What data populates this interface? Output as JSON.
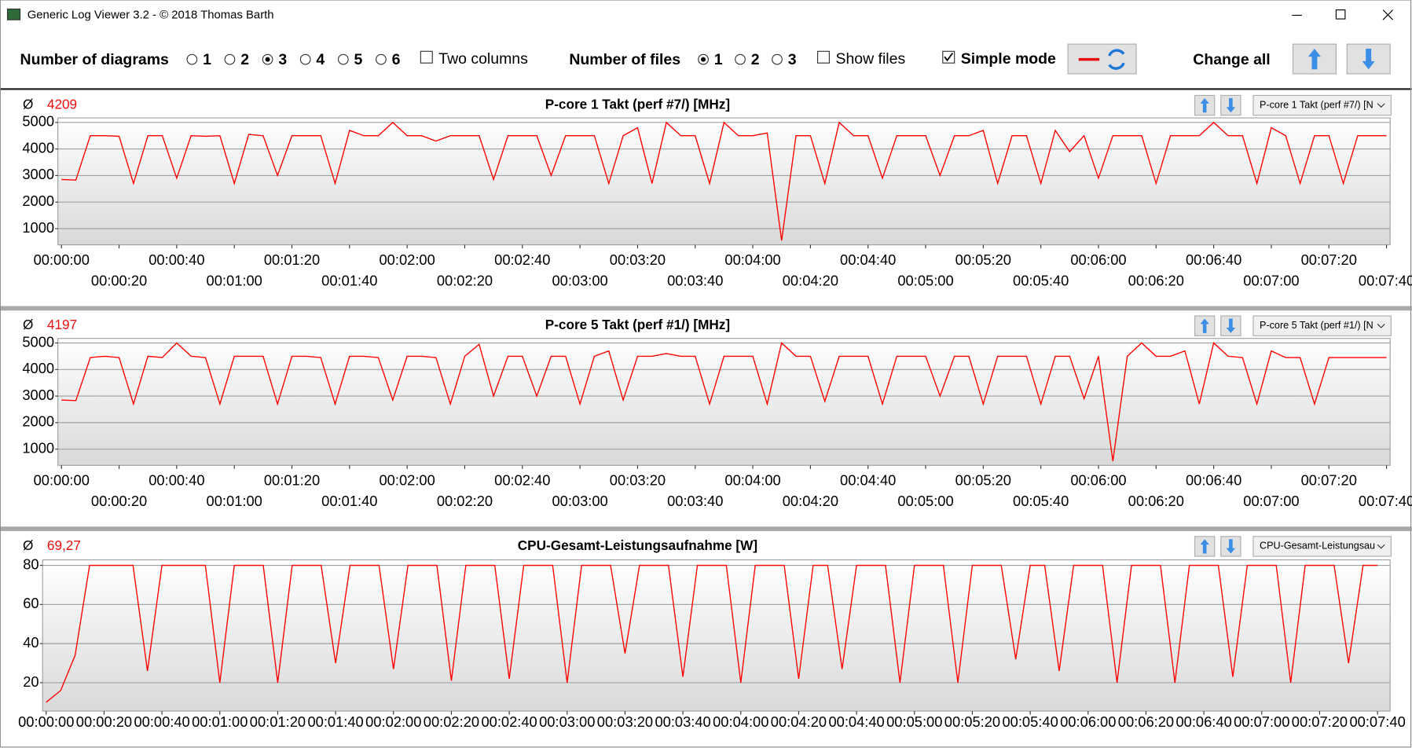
{
  "window": {
    "title": "Generic Log Viewer 3.2 - © 2018 Thomas Barth"
  },
  "toolbar": {
    "diagrams_label": "Number of diagrams",
    "diagram_options": [
      "1",
      "2",
      "3",
      "4",
      "5",
      "6"
    ],
    "diagrams_selected": "3",
    "two_columns": "Two columns",
    "two_columns_checked": false,
    "files_label": "Number of files",
    "file_options": [
      "1",
      "2",
      "3"
    ],
    "files_selected": "1",
    "show_files": "Show files",
    "show_files_checked": false,
    "simple_mode": "Simple mode",
    "simple_mode_checked": true,
    "change_all": "Change all"
  },
  "chart_data": [
    {
      "type": "line",
      "title": "P-core 1 Takt (perf #7/) [MHz]",
      "average_symbol": "Ø",
      "average": "4209",
      "selector": "P-core 1 Takt (perf #7/) [N",
      "color": "#ff0000",
      "grid": true,
      "x": [
        0,
        5,
        10,
        15,
        20,
        25,
        30,
        35,
        40,
        45,
        50,
        55,
        60,
        65,
        70,
        75,
        80,
        85,
        90,
        95,
        100,
        105,
        110,
        115,
        120,
        125,
        130,
        135,
        140,
        145,
        150,
        155,
        160,
        165,
        170,
        175,
        180,
        185,
        190,
        195,
        200,
        205,
        210,
        215,
        220,
        225,
        230,
        235,
        240,
        245,
        250,
        255,
        260,
        265,
        270,
        275,
        280,
        285,
        290,
        295,
        300,
        305,
        310,
        315,
        320,
        325,
        330,
        335,
        340,
        345,
        350,
        355,
        360,
        365,
        370,
        375,
        380,
        385,
        390,
        395,
        400,
        405,
        410,
        415,
        420,
        425,
        430,
        435,
        440,
        445,
        450,
        455,
        460
      ],
      "values": [
        2850,
        2830,
        4500,
        4500,
        4480,
        2700,
        4500,
        4500,
        2900,
        4500,
        4480,
        4500,
        2700,
        4550,
        4500,
        3000,
        4500,
        4500,
        4500,
        2700,
        4700,
        4500,
        4500,
        5000,
        4500,
        4500,
        4300,
        4500,
        4500,
        4500,
        2850,
        4500,
        4500,
        4500,
        3000,
        4500,
        4500,
        4500,
        2700,
        4500,
        4800,
        2700,
        5000,
        4500,
        4500,
        2700,
        5000,
        4500,
        4500,
        4600,
        550,
        4500,
        4500,
        2700,
        5000,
        4500,
        4500,
        2900,
        4500,
        4500,
        4500,
        3000,
        4500,
        4500,
        4700,
        2700,
        4500,
        4500,
        2700,
        4700,
        3900,
        4500,
        2900,
        4500,
        4500,
        4500,
        2700,
        4500,
        4500,
        4500,
        5000,
        4500,
        4500,
        2700,
        4800,
        4500,
        2700,
        4500,
        4500,
        2700,
        4500,
        4500,
        4500
      ],
      "xlim": [
        0,
        460
      ],
      "xticks": [
        {
          "value": 0,
          "label": "00:00:00"
        },
        {
          "value": 20,
          "label": "00:00:20"
        },
        {
          "value": 40,
          "label": "00:00:40"
        },
        {
          "value": 60,
          "label": "00:01:00"
        },
        {
          "value": 80,
          "label": "00:01:20"
        },
        {
          "value": 100,
          "label": "00:01:40"
        },
        {
          "value": 120,
          "label": "00:02:00"
        },
        {
          "value": 140,
          "label": "00:02:20"
        },
        {
          "value": 160,
          "label": "00:02:40"
        },
        {
          "value": 180,
          "label": "00:03:00"
        },
        {
          "value": 200,
          "label": "00:03:20"
        },
        {
          "value": 220,
          "label": "00:03:40"
        },
        {
          "value": 240,
          "label": "00:04:00"
        },
        {
          "value": 260,
          "label": "00:04:20"
        },
        {
          "value": 280,
          "label": "00:04:40"
        },
        {
          "value": 300,
          "label": "00:05:00"
        },
        {
          "value": 320,
          "label": "00:05:20"
        },
        {
          "value": 340,
          "label": "00:05:40"
        },
        {
          "value": 360,
          "label": "00:06:00"
        },
        {
          "value": 380,
          "label": "00:06:20"
        },
        {
          "value": 400,
          "label": "00:06:40"
        },
        {
          "value": 420,
          "label": "00:07:00"
        },
        {
          "value": 440,
          "label": "00:07:20"
        },
        {
          "value": 460,
          "label": "00:07:40"
        }
      ],
      "ylim": [
        390,
        5170
      ],
      "yticks": [
        1000,
        2000,
        3000,
        4000,
        5000
      ]
    },
    {
      "type": "line",
      "title": "P-core 5 Takt (perf #1/) [MHz]",
      "average_symbol": "Ø",
      "average": "4197",
      "selector": "P-core 5 Takt (perf #1/) [N",
      "color": "#ff0000",
      "grid": true,
      "x": [
        0,
        5,
        10,
        15,
        20,
        25,
        30,
        35,
        40,
        45,
        50,
        55,
        60,
        65,
        70,
        75,
        80,
        85,
        90,
        95,
        100,
        105,
        110,
        115,
        120,
        125,
        130,
        135,
        140,
        145,
        150,
        155,
        160,
        165,
        170,
        175,
        180,
        185,
        190,
        195,
        200,
        205,
        210,
        215,
        220,
        225,
        230,
        235,
        240,
        245,
        250,
        255,
        260,
        265,
        270,
        275,
        280,
        285,
        290,
        295,
        300,
        305,
        310,
        315,
        320,
        325,
        330,
        335,
        340,
        345,
        350,
        355,
        360,
        365,
        370,
        375,
        380,
        385,
        390,
        395,
        400,
        405,
        410,
        415,
        420,
        425,
        430,
        435,
        440,
        445,
        450,
        455,
        460
      ],
      "values": [
        2850,
        2830,
        4450,
        4500,
        4450,
        2700,
        4500,
        4450,
        5000,
        4500,
        4450,
        2700,
        4500,
        4500,
        4500,
        2700,
        4500,
        4500,
        4450,
        2700,
        4500,
        4500,
        4450,
        2850,
        4500,
        4500,
        4450,
        2700,
        4500,
        4950,
        3000,
        4500,
        4500,
        3000,
        4500,
        4500,
        2700,
        4500,
        4700,
        2850,
        4500,
        4500,
        4600,
        4500,
        4500,
        2700,
        4500,
        4500,
        4500,
        2700,
        5000,
        4500,
        4500,
        2800,
        4500,
        4500,
        4500,
        2700,
        4500,
        4500,
        4500,
        3000,
        4500,
        4500,
        2700,
        4500,
        4500,
        4500,
        2700,
        4500,
        4500,
        2900,
        4500,
        550,
        4500,
        5000,
        4500,
        4500,
        4700,
        2700,
        5000,
        4500,
        4450,
        2700,
        4700,
        4450,
        4450,
        2700,
        4450,
        4450,
        4450,
        4450,
        4450
      ],
      "xlim": [
        0,
        460
      ],
      "xticks": [
        {
          "value": 0,
          "label": "00:00:00"
        },
        {
          "value": 20,
          "label": "00:00:20"
        },
        {
          "value": 40,
          "label": "00:00:40"
        },
        {
          "value": 60,
          "label": "00:01:00"
        },
        {
          "value": 80,
          "label": "00:01:20"
        },
        {
          "value": 100,
          "label": "00:01:40"
        },
        {
          "value": 120,
          "label": "00:02:00"
        },
        {
          "value": 140,
          "label": "00:02:20"
        },
        {
          "value": 160,
          "label": "00:02:40"
        },
        {
          "value": 180,
          "label": "00:03:00"
        },
        {
          "value": 200,
          "label": "00:03:20"
        },
        {
          "value": 220,
          "label": "00:03:40"
        },
        {
          "value": 240,
          "label": "00:04:00"
        },
        {
          "value": 260,
          "label": "00:04:20"
        },
        {
          "value": 280,
          "label": "00:04:40"
        },
        {
          "value": 300,
          "label": "00:05:00"
        },
        {
          "value": 320,
          "label": "00:05:20"
        },
        {
          "value": 340,
          "label": "00:05:40"
        },
        {
          "value": 360,
          "label": "00:06:00"
        },
        {
          "value": 380,
          "label": "00:06:20"
        },
        {
          "value": 400,
          "label": "00:06:40"
        },
        {
          "value": 420,
          "label": "00:07:00"
        },
        {
          "value": 440,
          "label": "00:07:20"
        },
        {
          "value": 460,
          "label": "00:07:40"
        }
      ],
      "ylim": [
        390,
        5170
      ],
      "yticks": [
        1000,
        2000,
        3000,
        4000,
        5000
      ]
    },
    {
      "type": "line",
      "title": "CPU-Gesamt-Leistungsaufnahme [W]",
      "average_symbol": "Ø",
      "average": "69,27",
      "selector": "CPU-Gesamt-Leistungsau",
      "color": "#ff0000",
      "grid": true,
      "x": [
        0,
        5,
        10,
        15,
        20,
        25,
        30,
        35,
        40,
        45,
        50,
        55,
        60,
        65,
        70,
        75,
        80,
        85,
        90,
        95,
        100,
        105,
        110,
        115,
        120,
        125,
        130,
        135,
        140,
        145,
        150,
        155,
        160,
        165,
        170,
        175,
        180,
        185,
        190,
        195,
        200,
        205,
        210,
        215,
        220,
        225,
        230,
        235,
        240,
        245,
        250,
        255,
        260,
        265,
        270,
        275,
        280,
        285,
        290,
        295,
        300,
        305,
        310,
        315,
        320,
        325,
        330,
        335,
        340,
        345,
        350,
        355,
        360,
        365,
        370,
        375,
        380,
        385,
        390,
        395,
        400,
        405,
        410,
        415,
        420,
        425,
        430,
        435,
        440,
        445,
        450,
        455,
        460
      ],
      "values": [
        10,
        16,
        34,
        80,
        80,
        80,
        80,
        26,
        80,
        80,
        80,
        80,
        20,
        80,
        80,
        80,
        20,
        80,
        80,
        80,
        30,
        80,
        80,
        80,
        27,
        80,
        80,
        80,
        21,
        80,
        80,
        80,
        22,
        80,
        80,
        80,
        20,
        80,
        80,
        80,
        35,
        80,
        80,
        80,
        23,
        80,
        80,
        80,
        20,
        80,
        80,
        80,
        22,
        80,
        80,
        27,
        80,
        80,
        80,
        20,
        80,
        80,
        80,
        20,
        80,
        80,
        80,
        32,
        80,
        80,
        26,
        80,
        80,
        80,
        20,
        80,
        80,
        80,
        20,
        80,
        80,
        80,
        23,
        80,
        80,
        80,
        20,
        80,
        80,
        80,
        30,
        80,
        80
      ],
      "xlim": [
        0,
        460
      ],
      "xticks": [
        {
          "value": 0,
          "label": "00:00:00"
        },
        {
          "value": 20,
          "label": "00:00:20"
        },
        {
          "value": 40,
          "label": "00:00:40"
        },
        {
          "value": 60,
          "label": "00:01:00"
        },
        {
          "value": 80,
          "label": "00:01:20"
        },
        {
          "value": 100,
          "label": "00:01:40"
        },
        {
          "value": 120,
          "label": "00:02:00"
        },
        {
          "value": 140,
          "label": "00:02:20"
        },
        {
          "value": 160,
          "label": "00:02:40"
        },
        {
          "value": 180,
          "label": "00:03:00"
        },
        {
          "value": 200,
          "label": "00:03:20"
        },
        {
          "value": 220,
          "label": "00:03:40"
        },
        {
          "value": 240,
          "label": "00:04:00"
        },
        {
          "value": 260,
          "label": "00:04:20"
        },
        {
          "value": 280,
          "label": "00:04:40"
        },
        {
          "value": 300,
          "label": "00:05:00"
        },
        {
          "value": 320,
          "label": "00:05:20"
        },
        {
          "value": 340,
          "label": "00:05:40"
        },
        {
          "value": 360,
          "label": "00:06:00"
        },
        {
          "value": 380,
          "label": "00:06:20"
        },
        {
          "value": 400,
          "label": "00:06:40"
        },
        {
          "value": 420,
          "label": "00:07:00"
        },
        {
          "value": 440,
          "label": "00:07:20"
        },
        {
          "value": 460,
          "label": "00:07:40"
        }
      ],
      "ylim": [
        5.5,
        82.8
      ],
      "yticks": [
        20,
        40,
        60,
        80
      ]
    }
  ]
}
